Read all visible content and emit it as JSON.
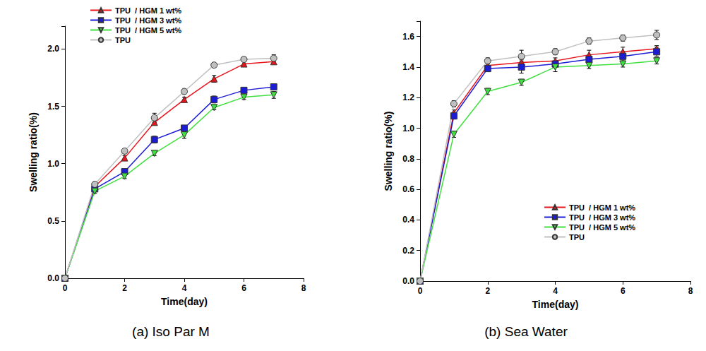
{
  "chart_data": [
    {
      "type": "line",
      "title": "(a) Iso Par M",
      "x_label": "Time(day)",
      "y_label": "Swelling ratio(%)",
      "x": [
        0,
        1,
        2,
        3,
        4,
        5,
        6,
        7
      ],
      "xlim": [
        0,
        8
      ],
      "xticks": [
        0,
        2,
        4,
        6,
        8
      ],
      "ylim": [
        0,
        2.2
      ],
      "yticks": [
        {
          "value": 0,
          "label": "0.0"
        },
        {
          "value": 0.5,
          "label": "0.5"
        },
        {
          "value": 1,
          "label": "1.0"
        },
        {
          "value": 1.5,
          "label": "1.5"
        },
        {
          "value": 2,
          "label": "2.0"
        }
      ],
      "legend": "upper left",
      "series": [
        {
          "name": "TPU  / HGM 1 wt%",
          "color": "#e8141c",
          "marker": "triangle",
          "values": [
            0,
            0.8,
            1.05,
            1.36,
            1.56,
            1.74,
            1.87,
            1.89
          ],
          "errors": [
            0,
            0.02,
            0.02,
            0.02,
            0.02,
            0.03,
            0.02,
            0.02
          ]
        },
        {
          "name": "TPU  / HGM 3 wt%",
          "color": "#1c1cd6",
          "marker": "square",
          "values": [
            0,
            0.78,
            0.93,
            1.21,
            1.31,
            1.56,
            1.64,
            1.67
          ],
          "errors": [
            0,
            0.02,
            0.02,
            0.03,
            0.02,
            0.03,
            0.02,
            0.02
          ]
        },
        {
          "name": "TPU  / HGM 5 wt%",
          "color": "#40e040",
          "marker": "triangle-down",
          "values": [
            0,
            0.76,
            0.89,
            1.09,
            1.25,
            1.49,
            1.58,
            1.6
          ],
          "errors": [
            0,
            0.02,
            0.02,
            0.02,
            0.03,
            0.02,
            0.02,
            0.03
          ]
        },
        {
          "name": "TPU",
          "color": "#c0c0c0",
          "marker": "circle",
          "values": [
            0,
            0.82,
            1.11,
            1.4,
            1.63,
            1.86,
            1.91,
            1.92
          ],
          "errors": [
            0,
            0.02,
            0.02,
            0.04,
            0.02,
            0.02,
            0.02,
            0.03
          ]
        }
      ]
    },
    {
      "type": "line",
      "title": "(b) Sea Water",
      "x_label": "Time(day)",
      "y_label": "Swelling ratio(%)",
      "x": [
        0,
        1,
        2,
        3,
        4,
        5,
        6,
        7
      ],
      "xlim": [
        0,
        8
      ],
      "xticks": [
        0,
        2,
        4,
        6,
        8
      ],
      "ylim": [
        0,
        1.7
      ],
      "yticks": [
        {
          "value": 0,
          "label": "0.0"
        },
        {
          "value": 0.2,
          "label": "0.2"
        },
        {
          "value": 0.4,
          "label": "0.4"
        },
        {
          "value": 0.6,
          "label": "0.6"
        },
        {
          "value": 0.8,
          "label": "0.8"
        },
        {
          "value": 1,
          "label": "1.0"
        },
        {
          "value": 1.2,
          "label": "1.2"
        },
        {
          "value": 1.4,
          "label": "1.4"
        },
        {
          "value": 1.6,
          "label": "1.6"
        }
      ],
      "legend": "lower right",
      "series": [
        {
          "name": "TPU  / HGM 1 wt%",
          "color": "#e8141c",
          "marker": "triangle",
          "values": [
            0,
            1.1,
            1.41,
            1.43,
            1.44,
            1.48,
            1.5,
            1.52
          ],
          "errors": [
            0,
            0.02,
            0.02,
            0.02,
            0.02,
            0.03,
            0.03,
            0.02
          ]
        },
        {
          "name": "TPU  / HGM 3 wt%",
          "color": "#1c1cd6",
          "marker": "square",
          "values": [
            0,
            1.08,
            1.39,
            1.4,
            1.42,
            1.45,
            1.47,
            1.5
          ],
          "errors": [
            0,
            0.02,
            0.02,
            0.04,
            0.02,
            0.02,
            0.03,
            0.03
          ]
        },
        {
          "name": "TPU  / HGM 5 wt%",
          "color": "#40e040",
          "marker": "triangle-down",
          "values": [
            0,
            0.96,
            1.24,
            1.3,
            1.4,
            1.41,
            1.42,
            1.44
          ],
          "errors": [
            0,
            0.02,
            0.02,
            0.02,
            0.03,
            0.02,
            0.02,
            0.02
          ]
        },
        {
          "name": "TPU",
          "color": "#c0c0c0",
          "marker": "circle",
          "values": [
            0,
            1.16,
            1.44,
            1.47,
            1.5,
            1.57,
            1.59,
            1.61
          ],
          "errors": [
            0,
            0.02,
            0.02,
            0.04,
            0.02,
            0.02,
            0.02,
            0.03
          ]
        }
      ]
    }
  ]
}
